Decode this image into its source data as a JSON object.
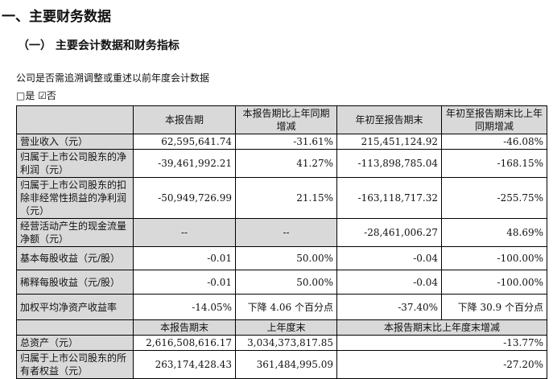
{
  "title": "一、主要财务数据",
  "subtitle": "（一）  主要会计数据和财务指标",
  "question": "公司是否需追溯调整或重述以前年度会计数据",
  "options": {
    "no_box": "□是",
    "yes_box": "☑否"
  },
  "header": [
    "",
    "本报告期",
    "本报告期比上年同期增减",
    "年初至报告期末",
    "年初至报告期末比上年同期增减"
  ],
  "rows": [
    {
      "label": "营业收入（元）",
      "v": [
        "62,595,641.74",
        "-31.61%",
        "215,451,124.92",
        "-46.08%"
      ]
    },
    {
      "label": "归属于上市公司股东的净利润（元）",
      "v": [
        "-39,461,992.21",
        "41.27%",
        "-113,898,785.04",
        "-168.15%"
      ]
    },
    {
      "label": "归属于上市公司股东的扣除非经常性损益的净利润（元）",
      "v": [
        "-50,949,726.99",
        "21.15%",
        "-163,118,717.32",
        "-255.75%"
      ]
    },
    {
      "label": "经营活动产生的现金流量净额（元）",
      "v": [
        "--",
        "--",
        "-28,461,006.27",
        "48.69%"
      ]
    },
    {
      "label": "基本每股收益（元/股）",
      "v": [
        "-0.01",
        "50.00%",
        "-0.04",
        "-100.00%"
      ]
    },
    {
      "label": "稀释每股收益（元/股）",
      "v": [
        "-0.01",
        "50.00%",
        "-0.04",
        "-100.00%"
      ]
    },
    {
      "label": "加权平均净资产收益率",
      "v": [
        "-14.05%",
        "下降 4.06 个百分点",
        "-37.40%",
        "下降 30.9 个百分点"
      ]
    }
  ],
  "header2": [
    "",
    "本报告期末",
    "上年度末",
    "本报告期末比上年度末增减"
  ],
  "rows2": [
    {
      "label": "总资产（元）",
      "v": [
        "2,616,508,616.17",
        "3,034,373,817.85",
        "-13.77%"
      ]
    },
    {
      "label": "归属于上市公司股东的所有者权益（元）",
      "v": [
        "263,174,428.43",
        "361,484,995.09",
        "-27.20%"
      ]
    }
  ]
}
